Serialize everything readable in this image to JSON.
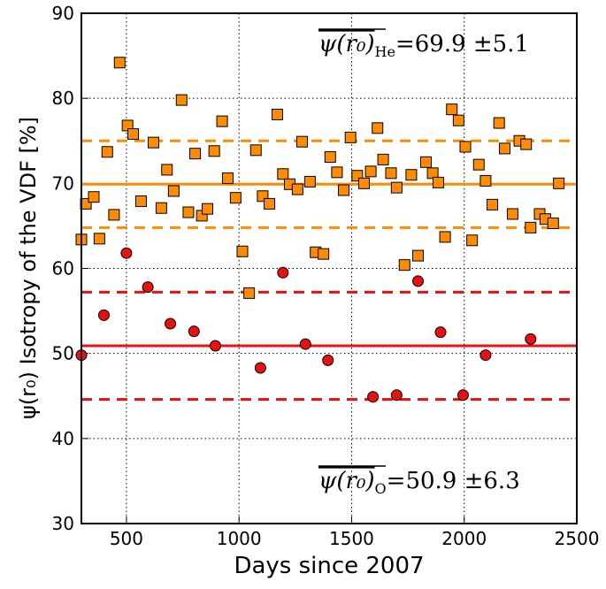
{
  "chart_data": {
    "type": "scatter",
    "xlabel": "Days since 2007",
    "ylabel": "ψ(r₀) Isotropy of the VDF [%]",
    "xlim": [
      300,
      2500
    ],
    "xticks": [
      500,
      1000,
      1500,
      2000,
      2500
    ],
    "ylim": [
      30,
      90
    ],
    "yticks": [
      30,
      40,
      50,
      60,
      70,
      80,
      90
    ],
    "grid": true,
    "series": [
      {
        "marker": "square",
        "color": "#ff8c00",
        "x": [
          300,
          320,
          355,
          380,
          415,
          445,
          470,
          505,
          530,
          565,
          620,
          655,
          680,
          710,
          745,
          775,
          805,
          835,
          860,
          890,
          925,
          950,
          985,
          1015,
          1045,
          1075,
          1105,
          1135,
          1170,
          1195,
          1225,
          1260,
          1280,
          1315,
          1340,
          1375,
          1405,
          1435,
          1465,
          1495,
          1525,
          1555,
          1585,
          1615,
          1640,
          1675,
          1700,
          1735,
          1765,
          1795,
          1830,
          1860,
          1885,
          1915,
          1945,
          1975,
          2005,
          2035,
          2065,
          2095,
          2125,
          2155,
          2180,
          2215,
          2245,
          2275,
          2295,
          2335,
          2360,
          2395,
          2420
        ],
        "values": [
          63.4,
          67.6,
          68.4,
          63.5,
          73.7,
          66.3,
          84.2,
          76.8,
          75.8,
          67.9,
          74.8,
          67.1,
          71.6,
          69.1,
          79.8,
          66.6,
          73.5,
          66.2,
          67.0,
          73.8,
          77.3,
          70.6,
          68.3,
          62.0,
          57.1,
          73.9,
          68.5,
          67.6,
          78.1,
          71.1,
          69.9,
          69.3,
          74.9,
          70.2,
          61.9,
          61.7,
          73.1,
          71.3,
          69.2,
          75.4,
          70.9,
          70.0,
          71.4,
          76.5,
          72.8,
          71.2,
          69.5,
          60.4,
          71.0,
          61.5,
          72.5,
          71.2,
          70.1,
          63.7,
          78.7,
          77.4,
          74.3,
          63.3,
          72.2,
          70.3,
          67.5,
          77.1,
          74.1,
          66.4,
          75.0,
          74.6,
          64.8,
          66.4,
          65.8,
          65.3,
          70.0
        ]
      },
      {
        "marker": "circle",
        "color": "#e81010",
        "x": [
          300,
          400,
          500,
          595,
          695,
          800,
          895,
          1095,
          1195,
          1295,
          1395,
          1595,
          1700,
          1795,
          1895,
          1995,
          2095,
          2295
        ],
        "values": [
          49.8,
          54.5,
          61.8,
          57.8,
          53.5,
          52.6,
          50.9,
          48.3,
          59.5,
          51.1,
          49.2,
          44.9,
          45.1,
          58.5,
          52.5,
          45.1,
          49.8,
          51.7
        ]
      }
    ],
    "hlines": [
      {
        "value": 69.9,
        "color": "#ff8c00",
        "style": "solid"
      },
      {
        "value": 75.0,
        "color": "#ff8c00",
        "style": "dashed"
      },
      {
        "value": 64.8,
        "color": "#ff8c00",
        "style": "dashed"
      },
      {
        "value": 50.9,
        "color": "#e81010",
        "style": "solid"
      },
      {
        "value": 57.2,
        "color": "#e81010",
        "style": "dashed"
      },
      {
        "value": 44.6,
        "color": "#e81010",
        "style": "dashed"
      }
    ],
    "annotations": [
      {
        "symbol": "ψ(r₀)",
        "subscript": "He",
        "text": "=69.9 ±5.1"
      },
      {
        "symbol": "ψ(r₀)",
        "subscript": "O",
        "text": "=50.9 ±6.3"
      }
    ]
  }
}
